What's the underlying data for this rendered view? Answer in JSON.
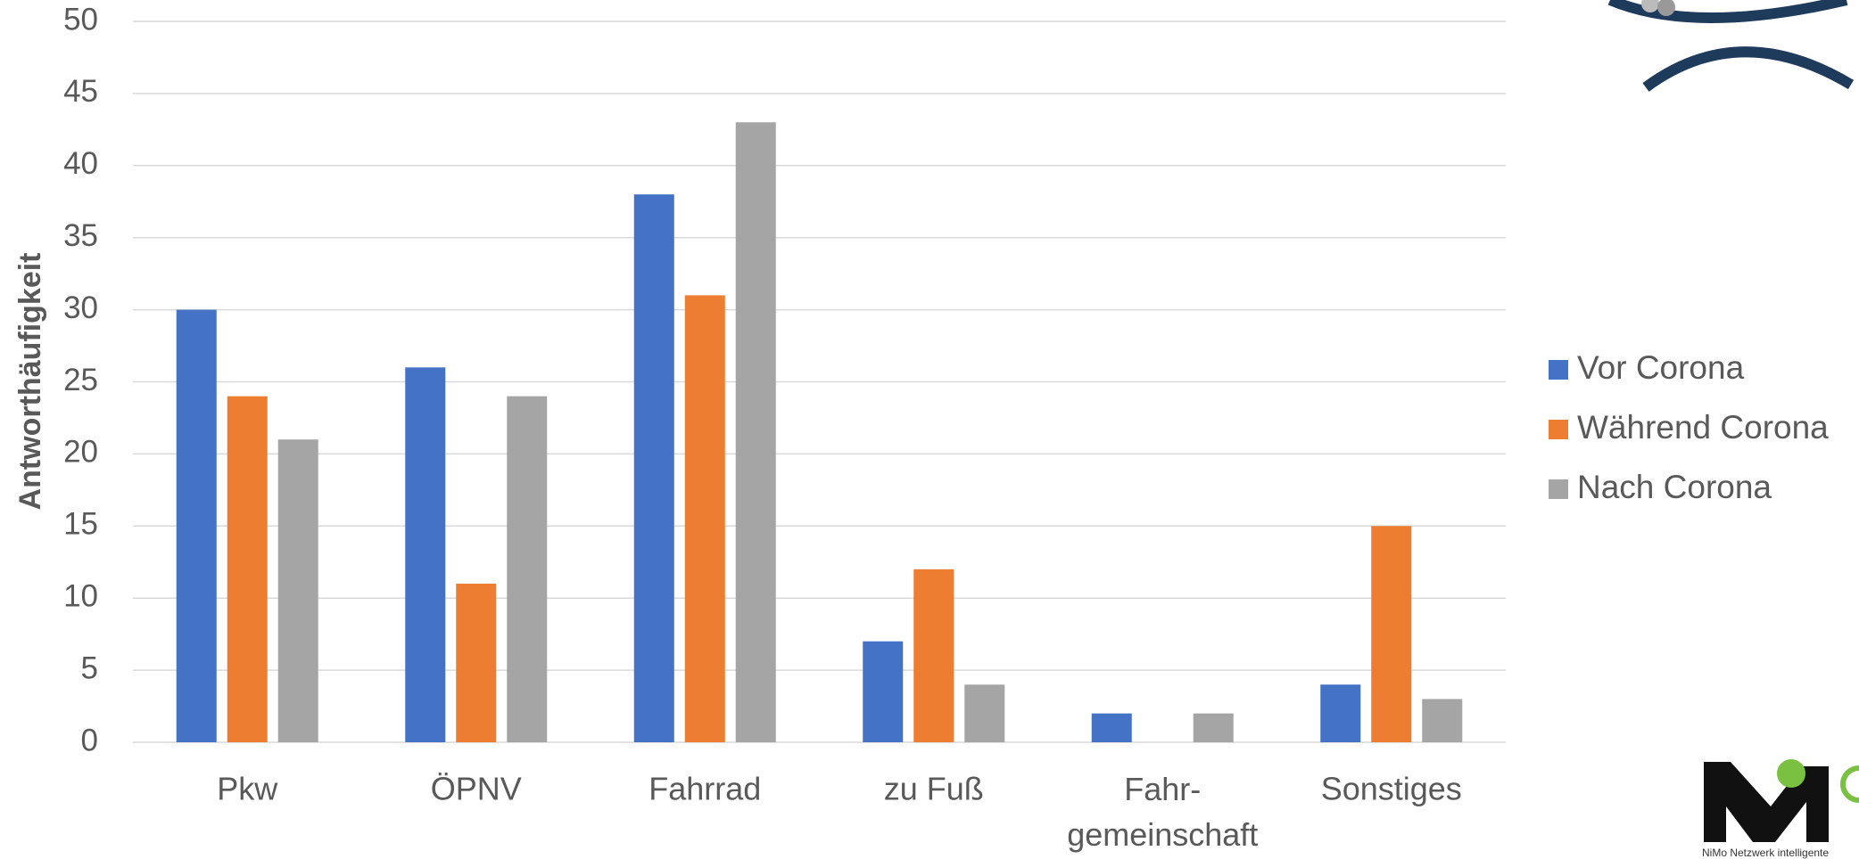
{
  "chart_data": {
    "type": "bar",
    "y_label": "Antworthäufigkeit",
    "categories": [
      "Pkw",
      "ÖPNV",
      "Fahrrad",
      "zu Fuß",
      "Fahr-\ngemeinschaft",
      "Sonstiges"
    ],
    "series": [
      {
        "name": "Vor Corona",
        "color": "#4472c4",
        "values": [
          30,
          26,
          38,
          7,
          2,
          4
        ]
      },
      {
        "name": "Während Corona",
        "color": "#ed7d31",
        "values": [
          24,
          11,
          31,
          12,
          0,
          15
        ]
      },
      {
        "name": "Nach Corona",
        "color": "#a5a5a5",
        "values": [
          21,
          24,
          43,
          4,
          2,
          3
        ]
      }
    ],
    "ylim": [
      0,
      50
    ],
    "yticks": [
      0,
      5,
      10,
      15,
      20,
      25,
      30,
      35,
      40,
      45,
      50
    ],
    "grid": true,
    "legend": "right"
  },
  "logo_text": "NiMo Netzwerk intelligente"
}
